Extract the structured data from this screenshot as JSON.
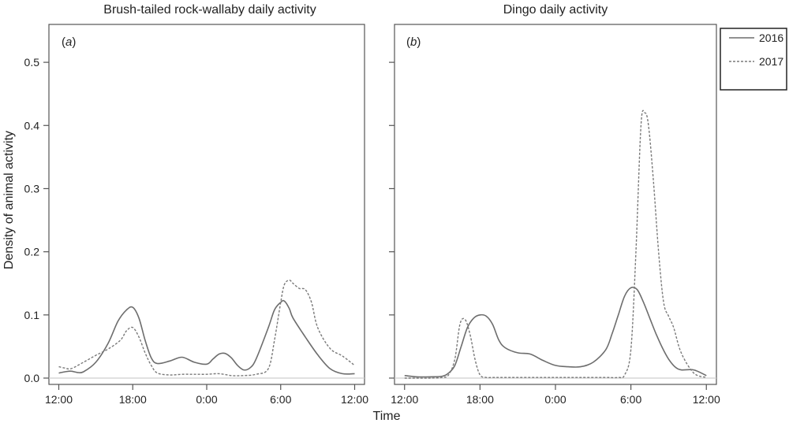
{
  "figure": {
    "ylabel": "Density of animal activity",
    "xlabel": "Time"
  },
  "legend": {
    "entries": [
      {
        "label": "2016",
        "style": "solid"
      },
      {
        "label": "2017",
        "style": "dashed"
      }
    ]
  },
  "colors": {
    "line_2016": "#6d6d6d",
    "line_2017": "#7a7a7a",
    "zero_line": "#cfcfcf",
    "frame": "#555555"
  },
  "chart_data": [
    {
      "type": "line",
      "title": "Brush-tailed rock-wallaby daily activity",
      "panel_label": "(a)",
      "panel_letter": "a",
      "x_ticks": [
        "12:00",
        "18:00",
        "0:00",
        "6:00",
        "12:00"
      ],
      "x_tick_hours": [
        0,
        6,
        12,
        18,
        24
      ],
      "y_ticks": [
        "0.0",
        "0.1",
        "0.2",
        "0.3",
        "0.4",
        "0.5"
      ],
      "y_tick_values": [
        0,
        0.1,
        0.2,
        0.3,
        0.4,
        0.5
      ],
      "ylim": [
        -0.01,
        0.56
      ],
      "xlim": [
        -0.8,
        24.8
      ],
      "grid": false,
      "series": [
        {
          "name": "2016",
          "style": "solid",
          "x": [
            0,
            0.5,
            1,
            1.5,
            2,
            3,
            4,
            4.8,
            5.5,
            6,
            6.5,
            7,
            7.5,
            8,
            9,
            10,
            11,
            12,
            12.5,
            13,
            13.5,
            14,
            14.5,
            15,
            15.5,
            16,
            17,
            17.5,
            18,
            18.3,
            18.7,
            19,
            20,
            21,
            22,
            23,
            24
          ],
          "y": [
            0.008,
            0.01,
            0.011,
            0.009,
            0.01,
            0.025,
            0.055,
            0.09,
            0.108,
            0.112,
            0.095,
            0.06,
            0.032,
            0.023,
            0.027,
            0.033,
            0.025,
            0.022,
            0.03,
            0.038,
            0.039,
            0.032,
            0.02,
            0.013,
            0.016,
            0.03,
            0.08,
            0.108,
            0.12,
            0.122,
            0.11,
            0.095,
            0.065,
            0.037,
            0.015,
            0.007,
            0.007
          ]
        },
        {
          "name": "2017",
          "style": "dashed",
          "x": [
            0,
            0.5,
            1,
            2,
            3,
            4,
            5,
            5.5,
            6,
            6.5,
            7,
            7.5,
            8,
            9,
            10,
            11,
            12,
            13,
            14,
            15,
            16,
            17,
            17.5,
            18,
            18.3,
            18.7,
            19,
            19.5,
            20,
            20.5,
            21,
            22,
            23,
            24
          ],
          "y": [
            0.018,
            0.016,
            0.015,
            0.025,
            0.036,
            0.046,
            0.06,
            0.075,
            0.08,
            0.065,
            0.04,
            0.02,
            0.008,
            0.005,
            0.006,
            0.006,
            0.006,
            0.007,
            0.004,
            0.004,
            0.006,
            0.015,
            0.06,
            0.12,
            0.148,
            0.155,
            0.15,
            0.142,
            0.14,
            0.12,
            0.08,
            0.047,
            0.035,
            0.02
          ]
        }
      ]
    },
    {
      "type": "line",
      "title": "Dingo daily activity",
      "panel_label": "(b)",
      "panel_letter": "b",
      "x_ticks": [
        "12:00",
        "18:00",
        "0:00",
        "6:00",
        "12:00"
      ],
      "x_tick_hours": [
        0,
        6,
        12,
        18,
        24
      ],
      "ylim": [
        -0.01,
        0.56
      ],
      "xlim": [
        -0.8,
        24.8
      ],
      "grid": false,
      "series": [
        {
          "name": "2016",
          "style": "solid",
          "x": [
            0,
            1,
            2,
            3,
            3.5,
            4,
            4.5,
            5,
            5.5,
            6,
            6.5,
            7,
            7.5,
            8,
            9,
            10,
            11,
            12,
            13,
            14,
            15,
            16,
            16.5,
            17,
            17.5,
            18,
            18.5,
            19,
            19.5,
            20,
            20.5,
            21,
            21.5,
            22,
            23,
            24
          ],
          "y": [
            0.004,
            0.002,
            0.002,
            0.003,
            0.008,
            0.02,
            0.05,
            0.08,
            0.095,
            0.1,
            0.098,
            0.085,
            0.06,
            0.048,
            0.04,
            0.038,
            0.028,
            0.02,
            0.018,
            0.018,
            0.025,
            0.045,
            0.07,
            0.1,
            0.13,
            0.143,
            0.14,
            0.12,
            0.095,
            0.07,
            0.048,
            0.03,
            0.018,
            0.013,
            0.013,
            0.004
          ]
        },
        {
          "name": "2017",
          "style": "dashed",
          "x": [
            0,
            1,
            2,
            3,
            3.5,
            4,
            4.4,
            4.8,
            5.2,
            5.6,
            6,
            6.5,
            7,
            8,
            10,
            12,
            14,
            16,
            17,
            17.5,
            18,
            18.4,
            18.8,
            19.1,
            19.4,
            19.8,
            20.2,
            20.6,
            21,
            21.4,
            22,
            23,
            24
          ],
          "y": [
            0,
            0,
            0,
            0.001,
            0.005,
            0.03,
            0.085,
            0.093,
            0.07,
            0.03,
            0.005,
            0.001,
            0.001,
            0.001,
            0.001,
            0.001,
            0.001,
            0.001,
            0.001,
            0.005,
            0.045,
            0.2,
            0.4,
            0.42,
            0.4,
            0.31,
            0.2,
            0.12,
            0.098,
            0.08,
            0.04,
            0.008,
            0.001
          ]
        }
      ]
    }
  ]
}
